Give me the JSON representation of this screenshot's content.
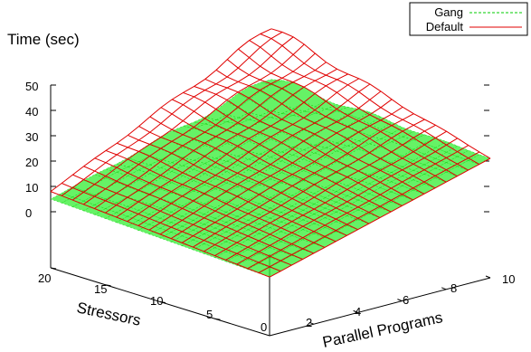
{
  "chart_data": {
    "type": "surface3d",
    "title": "",
    "zlabel": "Time (sec)",
    "xlabel": "Parallel Programs",
    "ylabel": "Stressors",
    "xlim": [
      0,
      10
    ],
    "ylim": [
      0,
      20
    ],
    "zlim": [
      0,
      50
    ],
    "xticks": [
      "2",
      "4",
      "6",
      "8",
      "10"
    ],
    "yticks": [
      "5",
      "10",
      "15",
      "20"
    ],
    "zticks": [
      "0",
      "10",
      "20",
      "30",
      "40",
      "50"
    ],
    "origin_label": "0",
    "legend_position": "top-right",
    "series": [
      {
        "name": "Gang",
        "style": "green dashed mesh, filled surface",
        "color": "#00cc00",
        "fill": "#33ee33",
        "corner_z": {
          "x0_y0": 1,
          "x10_y0": 25,
          "x0_y20": 5,
          "x10_y20": 30
        }
      },
      {
        "name": "Default",
        "style": "red solid mesh",
        "color": "#e00000",
        "corner_z": {
          "x0_y0": 1,
          "x10_y0": 25,
          "x0_y20": 8,
          "x10_y20": 50
        }
      }
    ]
  }
}
